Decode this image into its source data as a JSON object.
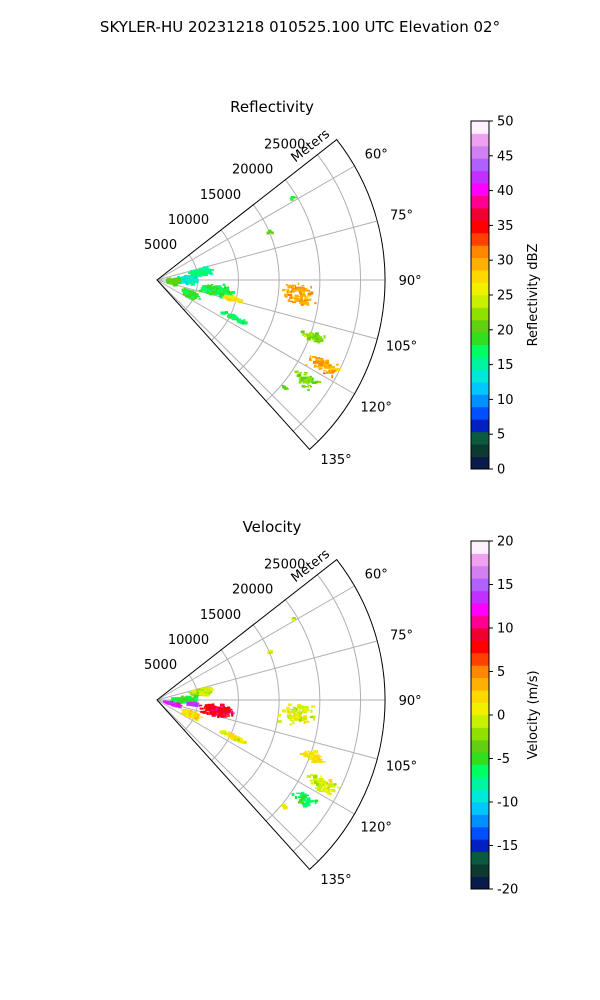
{
  "figure_title": "SKYLER-HU  20231218  010525.100 UTC Elevation 02°",
  "chart_data": [
    {
      "type": "radar-ppi",
      "title": "Reflectivity",
      "range_axis_label": "Meters",
      "range_ticks": [
        5000,
        10000,
        15000,
        20000,
        25000
      ],
      "range_tick_labels": [
        "5000",
        "10000",
        "15000",
        "20000",
        "25000"
      ],
      "range_max": 28000,
      "azimuth_range": [
        52,
        138
      ],
      "azimuth_ticks": [
        60,
        75,
        90,
        105,
        120,
        135
      ],
      "azimuth_tick_labels": [
        "60°",
        "75°",
        "90°",
        "105°",
        "120°",
        "135°"
      ],
      "grid": true,
      "colorbar": {
        "label": "Reflectivity dBZ",
        "range": [
          0,
          50
        ],
        "ticks": [
          0,
          5,
          10,
          15,
          20,
          25,
          30,
          35,
          40,
          45,
          50
        ],
        "tick_labels": [
          "0",
          "5",
          "10",
          "15",
          "20",
          "25",
          "30",
          "35",
          "40",
          "45",
          "50"
        ],
        "colors": [
          "#0a1a4a",
          "#0c3a30",
          "#0a5a40",
          "#0020c0",
          "#0050ff",
          "#0090ff",
          "#00c8ff",
          "#00e8d8",
          "#00f5a0",
          "#00ff60",
          "#30e020",
          "#60d010",
          "#90e000",
          "#c8f000",
          "#f0f000",
          "#ffd800",
          "#ffb000",
          "#ff8800",
          "#ff4000",
          "#ff0000",
          "#f00030",
          "#ff0090",
          "#ff00ff",
          "#c030ff",
          "#b060ff",
          "#d080f0",
          "#f0a0f0",
          "#fff0ff"
        ]
      },
      "echoes": [
        {
          "azimuth": 80,
          "range": 5600,
          "value": 16,
          "spread_az": 6,
          "spread_r": 1600,
          "count": 180
        },
        {
          "azimuth": 90,
          "range": 3500,
          "value": 14,
          "spread_az": 10,
          "spread_r": 2000,
          "count": 170
        },
        {
          "azimuth": 100,
          "range": 7500,
          "value": 18,
          "spread_az": 7,
          "spread_r": 2500,
          "count": 180
        },
        {
          "azimuth": 104,
          "range": 9500,
          "value": 27,
          "spread_az": 2,
          "spread_r": 1500,
          "count": 70
        },
        {
          "azimuth": 95,
          "range": 2000,
          "value": 20,
          "spread_az": 12,
          "spread_r": 1200,
          "count": 130
        },
        {
          "azimuth": 113,
          "range": 4500,
          "value": 19,
          "spread_az": 7,
          "spread_r": 1500,
          "count": 110
        },
        {
          "azimuth": 116,
          "range": 10500,
          "value": 17,
          "spread_az": 2,
          "spread_r": 2500,
          "count": 55
        },
        {
          "azimuth": 96,
          "range": 17500,
          "value": 30,
          "spread_az": 6,
          "spread_r": 2500,
          "count": 90
        },
        {
          "azimuth": 110,
          "range": 20500,
          "value": 22,
          "spread_az": 2,
          "spread_r": 2000,
          "count": 60
        },
        {
          "azimuth": 117,
          "range": 23000,
          "value": 30,
          "spread_az": 3,
          "spread_r": 2500,
          "count": 80
        },
        {
          "azimuth": 124,
          "range": 22000,
          "value": 21,
          "spread_az": 3,
          "spread_r": 2000,
          "count": 45
        },
        {
          "azimuth": 130,
          "range": 20500,
          "value": 20,
          "spread_az": 1,
          "spread_r": 600,
          "count": 8
        },
        {
          "azimuth": 67,
          "range": 15000,
          "value": 20,
          "spread_az": 1,
          "spread_r": 400,
          "count": 5
        },
        {
          "azimuth": 59,
          "range": 19500,
          "value": 20,
          "spread_az": 1,
          "spread_r": 400,
          "count": 4
        }
      ]
    },
    {
      "type": "radar-ppi",
      "title": "Velocity",
      "range_axis_label": "Meters",
      "range_ticks": [
        5000,
        10000,
        15000,
        20000,
        25000
      ],
      "range_tick_labels": [
        "5000",
        "10000",
        "15000",
        "20000",
        "25000"
      ],
      "range_max": 28000,
      "azimuth_range": [
        52,
        138
      ],
      "azimuth_ticks": [
        60,
        75,
        90,
        105,
        120,
        135
      ],
      "azimuth_tick_labels": [
        "60°",
        "75°",
        "90°",
        "105°",
        "120°",
        "135°"
      ],
      "grid": true,
      "colorbar": {
        "label": "Velocity (m/s)",
        "range": [
          -20,
          20
        ],
        "ticks": [
          -20,
          -15,
          -10,
          -5,
          0,
          5,
          10,
          15,
          20
        ],
        "tick_labels": [
          "-20",
          "-15",
          "-10",
          "-5",
          "0",
          "5",
          "10",
          "15",
          "20"
        ],
        "colors": [
          "#0a1a4a",
          "#0c3a30",
          "#0a5a40",
          "#0020c0",
          "#0050ff",
          "#0090ff",
          "#00c8ff",
          "#00e8d8",
          "#00f5a0",
          "#00ff60",
          "#30e020",
          "#60d010",
          "#90e000",
          "#c8f000",
          "#f0f000",
          "#ffd800",
          "#ffb000",
          "#ff8800",
          "#ff4000",
          "#ff0000",
          "#f00030",
          "#ff0090",
          "#ff00ff",
          "#c030ff",
          "#b060ff",
          "#d080f0",
          "#f0a0f0",
          "#fff0ff"
        ]
      },
      "echoes": [
        {
          "azimuth": 80,
          "range": 5600,
          "value": -1,
          "spread_az": 6,
          "spread_r": 1600,
          "count": 180
        },
        {
          "azimuth": 90,
          "range": 3500,
          "value": -5,
          "spread_az": 10,
          "spread_r": 2000,
          "count": 160
        },
        {
          "azimuth": 100,
          "range": 7500,
          "value": 9,
          "spread_az": 7,
          "spread_r": 2500,
          "count": 180
        },
        {
          "azimuth": 97,
          "range": 4500,
          "value": 14,
          "spread_az": 3,
          "spread_r": 1000,
          "count": 60
        },
        {
          "azimuth": 104,
          "range": 2000,
          "value": 13,
          "spread_az": 6,
          "spread_r": 1200,
          "count": 90
        },
        {
          "azimuth": 113,
          "range": 4500,
          "value": 2,
          "spread_az": 7,
          "spread_r": 1500,
          "count": 110
        },
        {
          "azimuth": 116,
          "range": 10500,
          "value": 1,
          "spread_az": 2,
          "spread_r": 2500,
          "count": 55
        },
        {
          "azimuth": 96,
          "range": 17500,
          "value": 0,
          "spread_az": 6,
          "spread_r": 2500,
          "count": 90
        },
        {
          "azimuth": 110,
          "range": 20500,
          "value": 1,
          "spread_az": 2,
          "spread_r": 2000,
          "count": 60
        },
        {
          "azimuth": 117,
          "range": 23000,
          "value": 0,
          "spread_az": 3,
          "spread_r": 2500,
          "count": 80
        },
        {
          "azimuth": 124,
          "range": 22000,
          "value": -6,
          "spread_az": 3,
          "spread_r": 2000,
          "count": 45
        },
        {
          "azimuth": 130,
          "range": 20500,
          "value": 1,
          "spread_az": 1,
          "spread_r": 600,
          "count": 8
        },
        {
          "azimuth": 67,
          "range": 15000,
          "value": 0,
          "spread_az": 1,
          "spread_r": 400,
          "count": 5
        },
        {
          "azimuth": 59,
          "range": 19500,
          "value": 0,
          "spread_az": 1,
          "spread_r": 400,
          "count": 4
        }
      ]
    }
  ]
}
